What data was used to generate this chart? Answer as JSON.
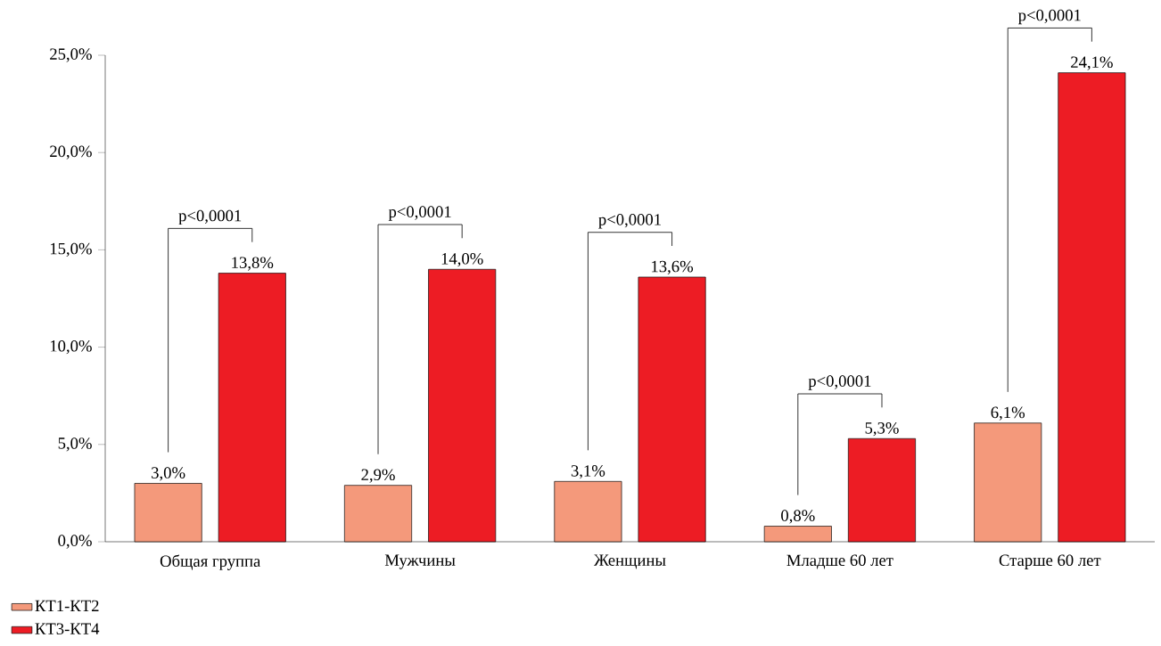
{
  "chart_data": {
    "type": "bar",
    "categories": [
      "Общая группа",
      "Мужчины",
      "Женщины",
      "Младше 60 лет",
      "Старше 60 лет"
    ],
    "series": [
      {
        "name": "КТ1-КТ2",
        "color": "#f4997b",
        "values": [
          3.0,
          2.9,
          3.1,
          0.8,
          6.1
        ],
        "value_labels": [
          "3,0%",
          "2,9%",
          "3,1%",
          "0,8%",
          "6,1%"
        ]
      },
      {
        "name": "КТ3-КТ4",
        "color": "#ed1c24",
        "values": [
          13.8,
          14.0,
          13.6,
          5.3,
          24.1
        ],
        "value_labels": [
          "13,8%",
          "14,0%",
          "13,6%",
          "5,3%",
          "24,1%"
        ]
      }
    ],
    "ylim": [
      0,
      25
    ],
    "yticks": [
      {
        "value": 0,
        "label": "0,0%"
      },
      {
        "value": 5,
        "label": "5,0%"
      },
      {
        "value": 10,
        "label": "10,0%"
      },
      {
        "value": 15,
        "label": "15,0%"
      },
      {
        "value": 20,
        "label": "20,0%"
      },
      {
        "value": 25,
        "label": "25,0%"
      }
    ],
    "annotations": [
      "p<0,0001",
      "p<0,0001",
      "p<0,0001",
      "p<0,0001",
      "p<0,0001"
    ],
    "legend": "bottom left",
    "grid": false
  }
}
